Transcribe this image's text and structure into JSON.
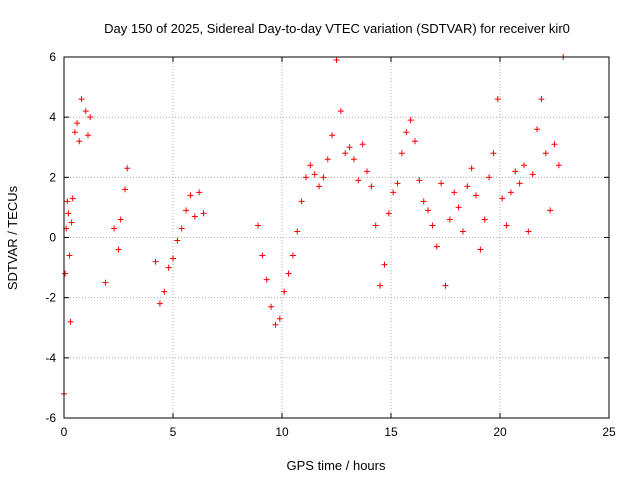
{
  "chart_data": {
    "type": "scatter",
    "title": "Day 150 of 2025, Sidereal Day-to-day VTEC variation (SDTVAR) for receiver kir0",
    "xlabel": "GPS time / hours",
    "ylabel": "SDTVAR / TECUs",
    "xlim": [
      0,
      25
    ],
    "ylim": [
      -6,
      6
    ],
    "xticks": [
      "0",
      "5",
      "10",
      "15",
      "20",
      "25"
    ],
    "yticks": [
      "-6",
      "-4",
      "-2",
      "0",
      "2",
      "4",
      "6"
    ],
    "grid": true,
    "marker": "plus",
    "series_color": "#ff0000",
    "series": [
      {
        "name": "SDTVAR",
        "x": [
          0.0,
          0.05,
          0.1,
          0.15,
          0.2,
          0.25,
          0.3,
          0.35,
          0.4,
          0.5,
          0.6,
          0.7,
          0.8,
          1.0,
          1.1,
          1.2,
          1.9,
          2.3,
          2.5,
          2.6,
          2.8,
          2.9,
          4.2,
          4.4,
          4.6,
          4.8,
          5.0,
          5.2,
          5.4,
          5.6,
          5.8,
          6.0,
          6.2,
          6.4,
          8.9,
          9.1,
          9.3,
          9.5,
          9.7,
          9.9,
          10.1,
          10.3,
          10.5,
          10.7,
          10.9,
          11.1,
          11.3,
          11.5,
          11.7,
          11.9,
          12.1,
          12.3,
          12.5,
          12.7,
          12.9,
          13.1,
          13.3,
          13.5,
          13.7,
          13.9,
          14.1,
          14.3,
          14.5,
          14.7,
          14.9,
          15.1,
          15.3,
          15.5,
          15.7,
          15.9,
          16.1,
          16.3,
          16.5,
          16.7,
          16.9,
          17.1,
          17.3,
          17.5,
          17.7,
          17.9,
          18.1,
          18.3,
          18.5,
          18.7,
          18.9,
          19.1,
          19.3,
          19.5,
          19.7,
          19.9,
          20.1,
          20.3,
          20.5,
          20.7,
          20.9,
          21.1,
          21.3,
          21.5,
          21.7,
          21.9,
          22.1,
          22.3,
          22.5,
          22.7,
          22.9
        ],
        "y": [
          -5.2,
          -1.2,
          0.3,
          1.2,
          0.8,
          -0.6,
          -2.8,
          0.5,
          1.3,
          3.5,
          3.8,
          3.2,
          4.6,
          4.2,
          3.4,
          4.0,
          -1.5,
          0.3,
          -0.4,
          0.6,
          1.6,
          2.3,
          -0.8,
          -2.2,
          -1.8,
          -1.0,
          -0.7,
          -0.1,
          0.3,
          0.9,
          1.4,
          0.7,
          1.5,
          0.8,
          0.4,
          -0.6,
          -1.4,
          -2.3,
          -2.9,
          -2.7,
          -1.8,
          -1.2,
          -0.6,
          0.2,
          1.2,
          2.0,
          2.4,
          2.1,
          1.7,
          2.0,
          2.6,
          3.4,
          5.9,
          4.2,
          2.8,
          3.0,
          2.6,
          1.9,
          3.1,
          2.2,
          1.7,
          0.4,
          -1.6,
          -0.9,
          0.8,
          1.5,
          1.8,
          2.8,
          3.5,
          3.9,
          3.2,
          1.9,
          1.2,
          0.9,
          0.4,
          -0.3,
          1.8,
          -1.6,
          0.6,
          1.5,
          1.0,
          0.2,
          1.7,
          2.3,
          1.4,
          -0.4,
          0.6,
          2.0,
          2.8,
          4.6,
          1.3,
          0.4,
          1.5,
          2.2,
          1.8,
          2.4,
          0.2,
          2.1,
          3.6,
          4.6,
          2.8,
          0.9,
          3.1,
          2.4,
          6.0
        ]
      }
    ]
  }
}
